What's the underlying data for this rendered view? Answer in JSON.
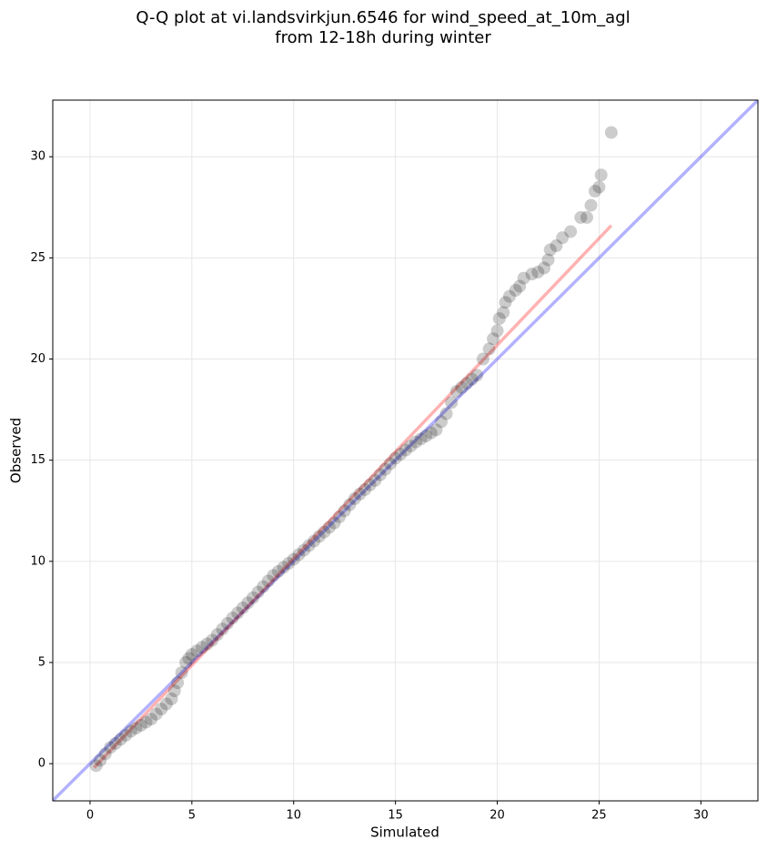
{
  "chart_data": {
    "type": "scatter",
    "title": [
      "Q-Q plot at vi.landsvirkjun.6546 for wind_speed_at_10m_agl",
      "from 12-18h during winter"
    ],
    "x_label": "Simulated",
    "y_label": "Observed",
    "xlim": [
      -1.83,
      32.8
    ],
    "ylim": [
      -1.84,
      32.8
    ],
    "xticks": [
      0,
      5,
      10,
      15,
      20,
      25,
      30
    ],
    "yticks": [
      0,
      5,
      10,
      15,
      20,
      25,
      30
    ],
    "grid": true,
    "color": "#000000",
    "alpha": 0.2,
    "x": [
      0.3,
      0.5,
      0.75,
      1,
      1.25,
      1.5,
      1.75,
      2,
      2.25,
      2.5,
      2.75,
      3,
      3.25,
      3.5,
      3.75,
      4,
      4.15,
      4.3,
      4.5,
      4.7,
      4.85,
      5,
      5.25,
      5.5,
      5.75,
      6,
      6.25,
      6.5,
      6.75,
      7,
      7.25,
      7.5,
      7.75,
      8,
      8.25,
      8.5,
      8.75,
      9,
      9.25,
      9.5,
      9.75,
      10,
      10.25,
      10.5,
      10.75,
      11,
      11.25,
      11.5,
      11.75,
      12,
      12.25,
      12.5,
      12.75,
      13,
      13.25,
      13.5,
      13.75,
      14,
      14.25,
      14.5,
      14.75,
      15,
      15.25,
      15.5,
      15.75,
      16,
      16.25,
      16.5,
      16.75,
      17,
      17.25,
      17.5,
      17.75,
      18,
      18.25,
      18.5,
      18.75,
      19,
      19.3,
      19.6,
      19.8,
      20,
      20.1,
      20.3,
      20.4,
      20.6,
      20.9,
      21.1,
      21.3,
      21.7,
      22,
      22.3,
      22.5,
      22.6,
      22.9,
      23.2,
      23.6,
      24.1,
      24.4,
      24.6,
      24.8,
      25,
      25.1,
      25.6
    ],
    "values": [
      -0.1,
      0.16,
      0.48,
      0.8,
      1.0,
      1.2,
      1.4,
      1.6,
      1.75,
      1.9,
      2.05,
      2.2,
      2.45,
      2.7,
      2.95,
      3.2,
      3.6,
      4.0,
      4.5,
      5.0,
      5.2,
      5.4,
      5.58,
      5.75,
      5.92,
      6.1,
      6.38,
      6.65,
      6.93,
      7.2,
      7.45,
      7.7,
      7.95,
      8.2,
      8.48,
      8.75,
      9.03,
      9.3,
      9.5,
      9.7,
      9.9,
      10.1,
      10.33,
      10.55,
      10.78,
      11.0,
      11.23,
      11.45,
      11.68,
      11.9,
      12.2,
      12.5,
      12.8,
      13.1,
      13.33,
      13.55,
      13.78,
      14.0,
      14.28,
      14.55,
      14.83,
      15.1,
      15.3,
      15.5,
      15.7,
      15.9,
      16.05,
      16.2,
      16.35,
      16.5,
      16.9,
      17.3,
      17.85,
      18.4,
      18.6,
      18.8,
      19.0,
      19.2,
      20,
      20.5,
      21,
      21.4,
      22,
      22.3,
      22.8,
      23.1,
      23.4,
      23.6,
      24,
      24.2,
      24.3,
      24.5,
      24.9,
      25.4,
      25.6,
      26,
      26.3,
      27,
      27,
      27.6,
      28.3,
      28.5,
      29.1,
      31.2
    ],
    "lines": [
      {
        "color": "#0000ff",
        "x": [
          -1.83,
          32.8
        ],
        "values": [
          -1.83,
          32.8
        ]
      },
      {
        "color": "#ff0000",
        "x": [
          0.2,
          25.6
        ],
        "values": [
          -0.2,
          26.6
        ]
      }
    ]
  }
}
